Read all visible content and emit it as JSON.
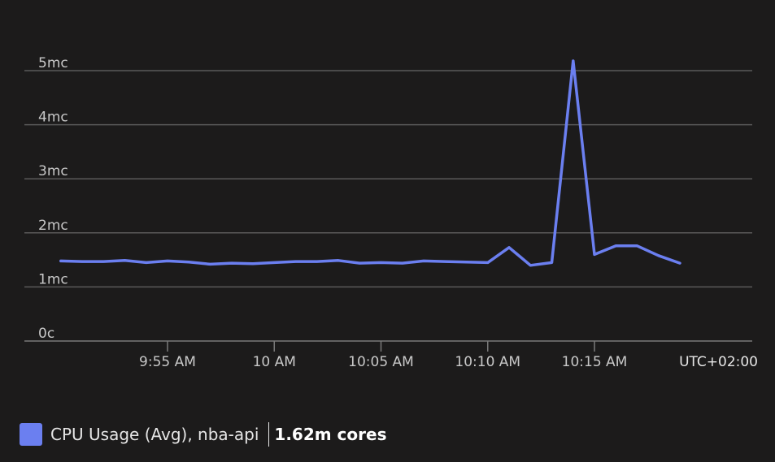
{
  "chart_data": {
    "type": "line",
    "timezone_label": "UTC+02:00",
    "y_ticks": [
      {
        "value": 0,
        "label": "0c"
      },
      {
        "value": 1,
        "label": "1mc"
      },
      {
        "value": 2,
        "label": "2mc"
      },
      {
        "value": 3,
        "label": "3mc"
      },
      {
        "value": 4,
        "label": "4mc"
      },
      {
        "value": 5,
        "label": "5mc"
      }
    ],
    "ylim": [
      0,
      5
    ],
    "x_ticks": [
      "9:55 AM",
      "10 AM",
      "10:05 AM",
      "10:10 AM",
      "10:15 AM"
    ],
    "grid": true,
    "series": [
      {
        "name": "CPU Usage (Avg), nba-api",
        "color": "#6b7ff0",
        "x": [
          "9:50 AM",
          "9:51 AM",
          "9:52 AM",
          "9:53 AM",
          "9:54 AM",
          "9:55 AM",
          "9:56 AM",
          "9:57 AM",
          "9:58 AM",
          "9:59 AM",
          "10:00 AM",
          "10:01 AM",
          "10:02 AM",
          "10:03 AM",
          "10:04 AM",
          "10:05 AM",
          "10:06 AM",
          "10:07 AM",
          "10:08 AM",
          "10:09 AM",
          "10:10 AM",
          "10:11 AM",
          "10:12 AM",
          "10:13 AM",
          "10:14 AM",
          "10:15 AM",
          "10:16 AM",
          "10:17 AM",
          "10:18 AM",
          "10:19 AM"
        ],
        "values": [
          1.48,
          1.47,
          1.47,
          1.49,
          1.45,
          1.48,
          1.46,
          1.42,
          1.44,
          1.43,
          1.45,
          1.47,
          1.47,
          1.49,
          1.44,
          1.45,
          1.44,
          1.48,
          1.47,
          1.46,
          1.45,
          1.73,
          1.4,
          1.45,
          5.18,
          1.6,
          1.76,
          1.76,
          1.58,
          1.44
        ]
      }
    ]
  },
  "legend": {
    "swatch_color": "#6b7ff0",
    "label": "CPU Usage (Avg), nba-api",
    "value": "1.62m cores"
  }
}
